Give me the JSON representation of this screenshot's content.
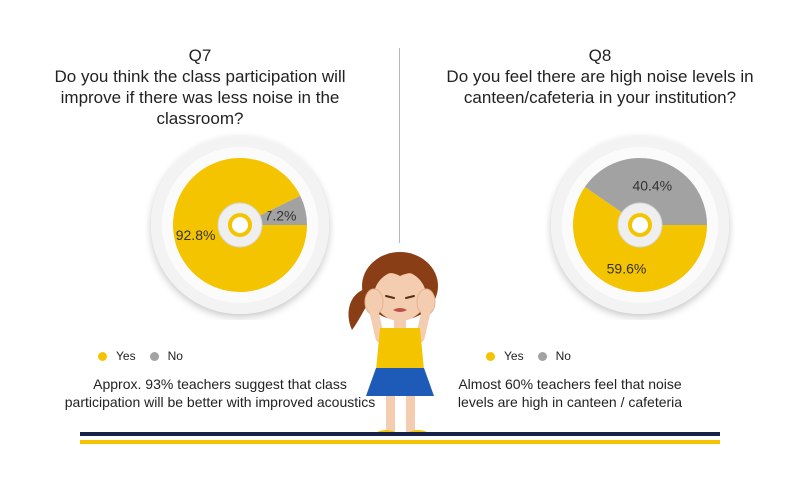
{
  "colors": {
    "yes": "#F5C400",
    "no": "#A2A2A2",
    "navy": "#16224A"
  },
  "q7": {
    "number": "Q7",
    "question": "Do you think the class participation will improve if there was less noise in the classroom?",
    "legend_yes": "Yes",
    "legend_no": "No",
    "note": "Approx. 93% teachers suggest that class participation will be better with improved acoustics"
  },
  "q8": {
    "number": "Q8",
    "question": "Do you feel there are high noise levels in canteen/cafeteria in your institution?",
    "legend_yes": "Yes",
    "legend_no": "No",
    "note": "Almost 60% teachers feel that noise levels are high in canteen / cafeteria"
  },
  "chart_data": [
    {
      "type": "pie",
      "title": "Do you think the class participation will improve if there was less noise in the classroom?",
      "categories": [
        "Yes",
        "No"
      ],
      "values": [
        92.8,
        7.2
      ],
      "labels": [
        "92.8%",
        "7.2%"
      ],
      "legend": "bottom-left"
    },
    {
      "type": "pie",
      "title": "Do you feel there are high noise levels in canteen/cafeteria in your institution?",
      "categories": [
        "Yes",
        "No"
      ],
      "values": [
        59.6,
        40.4
      ],
      "labels": [
        "59.6%",
        "40.4%"
      ],
      "legend": "bottom-left"
    }
  ]
}
